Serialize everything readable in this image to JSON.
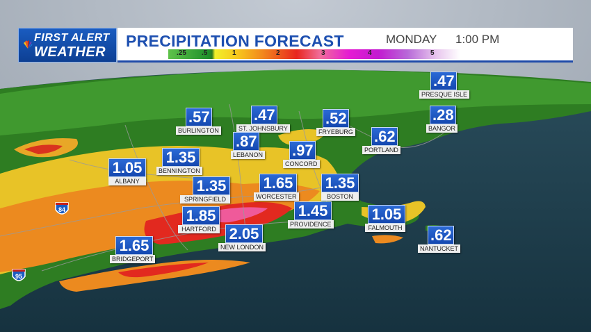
{
  "header": {
    "logo_line1": "FIRST ALERT",
    "logo_line2": "WEATHER",
    "title": "PRECIPITATION FORECAST",
    "day": "MONDAY",
    "time": "1:00 PM"
  },
  "legend": {
    "ticks": [
      ".25",
      ".5",
      "1",
      "2",
      "3",
      "4",
      "5"
    ]
  },
  "highways": [
    "84",
    "95"
  ],
  "stations": [
    {
      "city": "PRESQUE ISLE",
      "value": ".47"
    },
    {
      "city": "BANGOR",
      "value": ".28"
    },
    {
      "city": "BURLINGTON",
      "value": ".57"
    },
    {
      "city": "ST. JOHNSBURY",
      "value": ".47"
    },
    {
      "city": "FRYEBURG",
      "value": ".52"
    },
    {
      "city": "PORTLAND",
      "value": ".62"
    },
    {
      "city": "LEBANON",
      "value": ".87"
    },
    {
      "city": "CONCORD",
      "value": ".97"
    },
    {
      "city": "BENNINGTON",
      "value": "1.35"
    },
    {
      "city": "ALBANY",
      "value": "1.05"
    },
    {
      "city": "SPRINGFIELD",
      "value": "1.35"
    },
    {
      "city": "WORCESTER",
      "value": "1.65"
    },
    {
      "city": "BOSTON",
      "value": "1.35"
    },
    {
      "city": "HARTFORD",
      "value": "1.85"
    },
    {
      "city": "PROVIDENCE",
      "value": "1.45"
    },
    {
      "city": "FALMOUTH",
      "value": "1.05"
    },
    {
      "city": "NEW LONDON",
      "value": "2.05"
    },
    {
      "city": "NANTUCKET",
      "value": ".62"
    },
    {
      "city": "BRIDGEPORT",
      "value": "1.65"
    }
  ],
  "colors": {
    "brand_blue": "#1d4fb0",
    "ocean": "#1b3a48",
    "sky": "#9aa3ae"
  }
}
